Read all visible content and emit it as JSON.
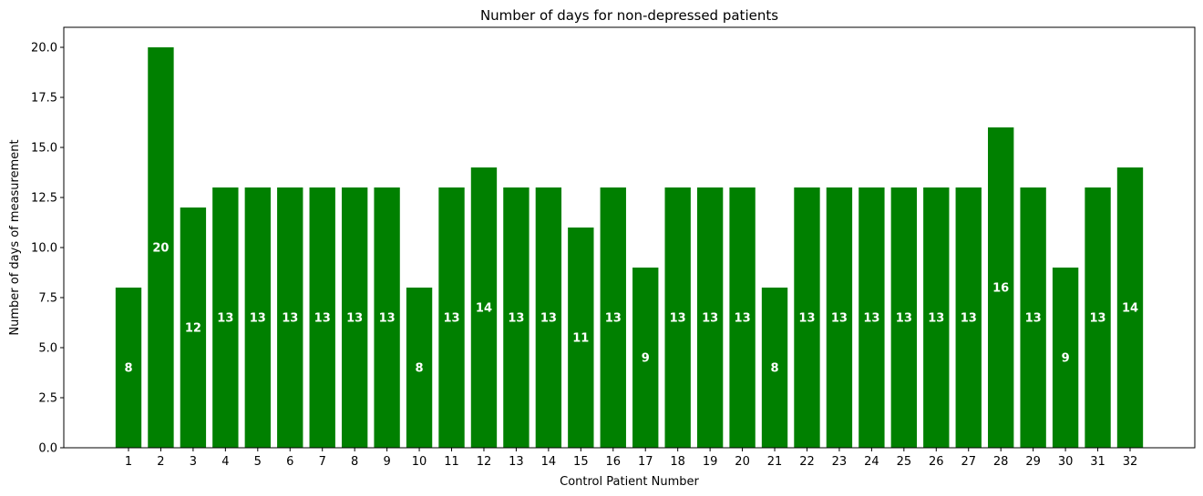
{
  "chart_data": {
    "type": "bar",
    "title": "Number of days for non-depressed patients",
    "xlabel": "Control Patient Number",
    "ylabel": "Number of days of measurement",
    "categories": [
      "1",
      "2",
      "3",
      "4",
      "5",
      "6",
      "7",
      "8",
      "9",
      "10",
      "11",
      "12",
      "13",
      "14",
      "15",
      "16",
      "17",
      "18",
      "19",
      "20",
      "21",
      "22",
      "23",
      "24",
      "25",
      "26",
      "27",
      "28",
      "29",
      "30",
      "31",
      "32"
    ],
    "values": [
      8,
      20,
      12,
      13,
      13,
      13,
      13,
      13,
      13,
      8,
      13,
      14,
      13,
      13,
      11,
      13,
      9,
      13,
      13,
      13,
      8,
      13,
      13,
      13,
      13,
      13,
      13,
      16,
      13,
      9,
      13,
      14
    ],
    "data_labels": [
      "8",
      "20",
      "12",
      "13",
      "13",
      "13",
      "13",
      "13",
      "13",
      "8",
      "13",
      "14",
      "13",
      "13",
      "11",
      "13",
      "9",
      "13",
      "13",
      "13",
      "8",
      "13",
      "13",
      "13",
      "13",
      "13",
      "13",
      "16",
      "13",
      "9",
      "13",
      "14"
    ],
    "ylim": [
      0,
      21
    ],
    "yticks": [
      0,
      2.5,
      5,
      7.5,
      10,
      12.5,
      15,
      17.5,
      20
    ],
    "ytick_labels": [
      "0.0",
      "2.5",
      "5.0",
      "7.5",
      "10.0",
      "12.5",
      "15.0",
      "17.5",
      "20.0"
    ],
    "grid": false,
    "bar_color": "#008000",
    "label_color": "#ffffff"
  }
}
